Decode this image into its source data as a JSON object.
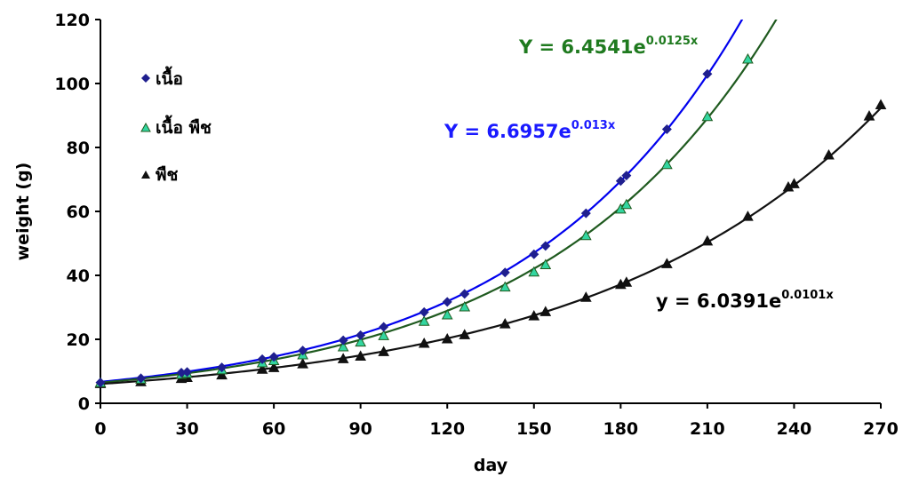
{
  "chart_data": {
    "type": "scatter",
    "xlabel": "day",
    "ylabel": "weight (g)",
    "xlim": [
      0,
      270
    ],
    "ylim": [
      0,
      120
    ],
    "x_ticks": [
      "0",
      "30",
      "60",
      "90",
      "120",
      "150",
      "180",
      "210",
      "240",
      "270"
    ],
    "y_ticks": [
      "0",
      "20",
      "40",
      "60",
      "80",
      "100",
      "120"
    ],
    "grid": false,
    "legend_position": "top-left",
    "series": [
      {
        "name": "เนื้อ",
        "marker": "diamond",
        "color": "#1f1f8f",
        "line_color": "#0000ee",
        "trend": {
          "type": "exponential",
          "a": 6.6957,
          "b": 0.013
        },
        "equation": {
          "prefix": "Y = 6.6957e",
          "exponent": "0.013x",
          "color": "#1a1aff"
        },
        "points": [
          [
            0,
            6.5
          ],
          [
            14,
            7.8
          ],
          [
            28,
            9.6
          ],
          [
            30,
            9.8
          ],
          [
            42,
            11.2
          ],
          [
            56,
            13.8
          ],
          [
            60,
            14.5
          ],
          [
            70,
            16.5
          ],
          [
            84,
            19.7
          ],
          [
            90,
            21.3
          ],
          [
            98,
            23.9
          ],
          [
            112,
            28.5
          ],
          [
            120,
            31.7
          ],
          [
            126,
            34.2
          ],
          [
            140,
            40.9
          ],
          [
            150,
            46.6
          ],
          [
            154,
            49.2
          ],
          [
            168,
            59.4
          ],
          [
            180,
            69.5
          ],
          [
            182,
            71.2
          ],
          [
            196,
            85.7
          ],
          [
            210,
            103.0
          ]
        ]
      },
      {
        "name": "เนื้อ พืช",
        "marker": "triangle",
        "color": "#33d6a0",
        "line_color": "#1f5a1f",
        "trend": {
          "type": "exponential",
          "a": 6.4541,
          "b": 0.0125
        },
        "equation": {
          "prefix": "Y = 6.4541e",
          "exponent": "0.0125x",
          "color": "#1f7a1f"
        },
        "points": [
          [
            0,
            6.3
          ],
          [
            14,
            7.4
          ],
          [
            28,
            8.9
          ],
          [
            30,
            9.2
          ],
          [
            42,
            10.3
          ],
          [
            56,
            12.5
          ],
          [
            60,
            13.2
          ],
          [
            70,
            15.0
          ],
          [
            84,
            17.5
          ],
          [
            90,
            19.0
          ],
          [
            98,
            21.0
          ],
          [
            112,
            25.5
          ],
          [
            120,
            27.5
          ],
          [
            126,
            30.0
          ],
          [
            140,
            36.2
          ],
          [
            150,
            40.9
          ],
          [
            154,
            43.2
          ],
          [
            168,
            52.3
          ],
          [
            180,
            60.6
          ],
          [
            182,
            62.0
          ],
          [
            196,
            74.5
          ],
          [
            210,
            89.5
          ],
          [
            224,
            107.5
          ]
        ]
      },
      {
        "name": "พืช",
        "marker": "triangle",
        "color": "#111111",
        "line_color": "#111111",
        "trend": {
          "type": "exponential",
          "a": 6.0391,
          "b": 0.0101
        },
        "equation": {
          "prefix": "y = 6.0391e",
          "exponent": "0.0101x",
          "color": "#000000"
        },
        "points": [
          [
            0,
            6.0
          ],
          [
            14,
            6.6
          ],
          [
            28,
            7.6
          ],
          [
            30,
            7.9
          ],
          [
            42,
            8.7
          ],
          [
            56,
            10.5
          ],
          [
            60,
            11.0
          ],
          [
            70,
            12.2
          ],
          [
            84,
            13.8
          ],
          [
            90,
            14.6
          ],
          [
            98,
            16.0
          ],
          [
            112,
            18.6
          ],
          [
            120,
            20.0
          ],
          [
            126,
            21.3
          ],
          [
            140,
            24.7
          ],
          [
            150,
            27.2
          ],
          [
            154,
            28.5
          ],
          [
            168,
            33.0
          ],
          [
            180,
            37.0
          ],
          [
            182,
            37.7
          ],
          [
            196,
            43.5
          ],
          [
            210,
            50.6
          ],
          [
            224,
            58.3
          ],
          [
            238,
            67.5
          ],
          [
            240,
            68.5
          ],
          [
            252,
            77.5
          ],
          [
            266,
            89.7
          ],
          [
            270,
            93.2
          ]
        ]
      }
    ]
  }
}
